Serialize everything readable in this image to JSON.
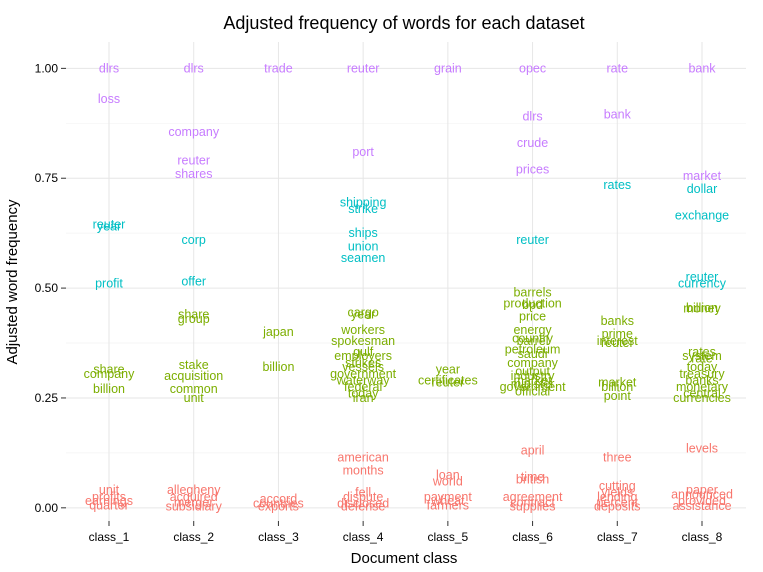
{
  "chart_data": {
    "type": "scatter",
    "title": "Adjusted frequency of words for each dataset",
    "xlabel": "Document class",
    "ylabel": "Adjusted word frequency",
    "categories": [
      "class_1",
      "class_2",
      "class_3",
      "class_4",
      "class_5",
      "class_6",
      "class_7",
      "class_8"
    ],
    "ylim": [
      -0.03,
      1.06
    ],
    "yticks": [
      0.0,
      0.25,
      0.5,
      0.75,
      1.0
    ],
    "ytick_labels": [
      "0.00",
      "0.25",
      "0.50",
      "0.75",
      "1.00"
    ],
    "grid": true,
    "legend": "none",
    "colors": {
      "high": "#C77CFF",
      "upper_mid": "#00BFC4",
      "mid": "#7CAE00",
      "low": "#F8766D"
    },
    "points": [
      {
        "c": 0,
        "y": 1.0,
        "w": "dlrs",
        "g": "high"
      },
      {
        "c": 0,
        "y": 0.93,
        "w": "loss",
        "g": "high"
      },
      {
        "c": 0,
        "y": 0.645,
        "w": "reuter",
        "g": "upper_mid"
      },
      {
        "c": 0,
        "y": 0.64,
        "w": "year",
        "g": "upper_mid"
      },
      {
        "c": 0,
        "y": 0.51,
        "w": "profit",
        "g": "upper_mid"
      },
      {
        "c": 0,
        "y": 0.315,
        "w": "share",
        "g": "mid"
      },
      {
        "c": 0,
        "y": 0.305,
        "w": "company",
        "g": "mid"
      },
      {
        "c": 0,
        "y": 0.27,
        "w": "billion",
        "g": "mid"
      },
      {
        "c": 0,
        "y": 0.04,
        "w": "unit",
        "g": "low"
      },
      {
        "c": 0,
        "y": 0.025,
        "w": "profits",
        "g": "low"
      },
      {
        "c": 0,
        "y": 0.015,
        "w": "earnings",
        "g": "low"
      },
      {
        "c": 0,
        "y": 0.005,
        "w": "quarter",
        "g": "low"
      },
      {
        "c": 1,
        "y": 1.0,
        "w": "dlrs",
        "g": "high"
      },
      {
        "c": 1,
        "y": 0.855,
        "w": "company",
        "g": "high"
      },
      {
        "c": 1,
        "y": 0.79,
        "w": "reuter",
        "g": "high"
      },
      {
        "c": 1,
        "y": 0.76,
        "w": "shares",
        "g": "high"
      },
      {
        "c": 1,
        "y": 0.61,
        "w": "corp",
        "g": "upper_mid"
      },
      {
        "c": 1,
        "y": 0.515,
        "w": "offer",
        "g": "upper_mid"
      },
      {
        "c": 1,
        "y": 0.44,
        "w": "share",
        "g": "mid"
      },
      {
        "c": 1,
        "y": 0.43,
        "w": "group",
        "g": "mid"
      },
      {
        "c": 1,
        "y": 0.325,
        "w": "stake",
        "g": "mid"
      },
      {
        "c": 1,
        "y": 0.3,
        "w": "acquisition",
        "g": "mid"
      },
      {
        "c": 1,
        "y": 0.27,
        "w": "common",
        "g": "mid"
      },
      {
        "c": 1,
        "y": 0.25,
        "w": "unit",
        "g": "mid"
      },
      {
        "c": 1,
        "y": 0.04,
        "w": "allegheny",
        "g": "low"
      },
      {
        "c": 1,
        "y": 0.025,
        "w": "acquired",
        "g": "low"
      },
      {
        "c": 1,
        "y": 0.012,
        "w": "merger",
        "g": "low"
      },
      {
        "c": 1,
        "y": 0.003,
        "w": "subsidiary",
        "g": "low"
      },
      {
        "c": 2,
        "y": 1.0,
        "w": "trade",
        "g": "high"
      },
      {
        "c": 2,
        "y": 0.4,
        "w": "japan",
        "g": "mid"
      },
      {
        "c": 2,
        "y": 0.32,
        "w": "billion",
        "g": "mid"
      },
      {
        "c": 2,
        "y": 0.02,
        "w": "accord",
        "g": "low"
      },
      {
        "c": 2,
        "y": 0.01,
        "w": "countries",
        "g": "low"
      },
      {
        "c": 2,
        "y": 0.003,
        "w": "exports",
        "g": "low"
      },
      {
        "c": 3,
        "y": 1.0,
        "w": "reuter",
        "g": "high"
      },
      {
        "c": 3,
        "y": 0.81,
        "w": "port",
        "g": "high"
      },
      {
        "c": 3,
        "y": 0.695,
        "w": "shipping",
        "g": "upper_mid"
      },
      {
        "c": 3,
        "y": 0.68,
        "w": "strike",
        "g": "upper_mid"
      },
      {
        "c": 3,
        "y": 0.625,
        "w": "ships",
        "g": "upper_mid"
      },
      {
        "c": 3,
        "y": 0.595,
        "w": "union",
        "g": "upper_mid"
      },
      {
        "c": 3,
        "y": 0.568,
        "w": "seamen",
        "g": "upper_mid"
      },
      {
        "c": 3,
        "y": 0.445,
        "w": "cargo",
        "g": "mid"
      },
      {
        "c": 3,
        "y": 0.44,
        "w": "year",
        "g": "mid"
      },
      {
        "c": 3,
        "y": 0.405,
        "w": "workers",
        "g": "mid"
      },
      {
        "c": 3,
        "y": 0.38,
        "w": "spokesman",
        "g": "mid"
      },
      {
        "c": 3,
        "y": 0.355,
        "w": "gulf",
        "g": "mid"
      },
      {
        "c": 3,
        "y": 0.345,
        "w": "employers",
        "g": "mid"
      },
      {
        "c": 3,
        "y": 0.33,
        "w": "strikes",
        "g": "mid"
      },
      {
        "c": 3,
        "y": 0.32,
        "w": "vessels",
        "g": "mid"
      },
      {
        "c": 3,
        "y": 0.305,
        "w": "government",
        "g": "mid"
      },
      {
        "c": 3,
        "y": 0.29,
        "w": "waterway",
        "g": "mid"
      },
      {
        "c": 3,
        "y": 0.275,
        "w": "federal",
        "g": "mid"
      },
      {
        "c": 3,
        "y": 0.26,
        "w": "today",
        "g": "mid"
      },
      {
        "c": 3,
        "y": 0.25,
        "w": "iran",
        "g": "mid"
      },
      {
        "c": 3,
        "y": 0.115,
        "w": "american",
        "g": "low"
      },
      {
        "c": 3,
        "y": 0.085,
        "w": "months",
        "g": "low"
      },
      {
        "c": 3,
        "y": 0.035,
        "w": "fell",
        "g": "low"
      },
      {
        "c": 3,
        "y": 0.025,
        "w": "dispute",
        "g": "low"
      },
      {
        "c": 3,
        "y": 0.01,
        "w": "disclosed",
        "g": "low"
      },
      {
        "c": 3,
        "y": 0.003,
        "w": "defense",
        "g": "low"
      },
      {
        "c": 4,
        "y": 1.0,
        "w": "grain",
        "g": "high"
      },
      {
        "c": 4,
        "y": 0.315,
        "w": "year",
        "g": "mid"
      },
      {
        "c": 4,
        "y": 0.29,
        "w": "certificates",
        "g": "mid"
      },
      {
        "c": 4,
        "y": 0.285,
        "w": "reuter",
        "g": "mid"
      },
      {
        "c": 4,
        "y": 0.075,
        "w": "loan",
        "g": "low"
      },
      {
        "c": 4,
        "y": 0.06,
        "w": "world",
        "g": "low"
      },
      {
        "c": 4,
        "y": 0.025,
        "w": "payment",
        "g": "low"
      },
      {
        "c": 4,
        "y": 0.015,
        "w": "wheat",
        "g": "low"
      },
      {
        "c": 4,
        "y": 0.005,
        "w": "farmers",
        "g": "low"
      },
      {
        "c": 5,
        "y": 1.0,
        "w": "opec",
        "g": "high"
      },
      {
        "c": 5,
        "y": 0.89,
        "w": "dlrs",
        "g": "high"
      },
      {
        "c": 5,
        "y": 0.83,
        "w": "crude",
        "g": "high"
      },
      {
        "c": 5,
        "y": 0.77,
        "w": "prices",
        "g": "high"
      },
      {
        "c": 5,
        "y": 0.61,
        "w": "reuter",
        "g": "upper_mid"
      },
      {
        "c": 5,
        "y": 0.49,
        "w": "barrels",
        "g": "mid"
      },
      {
        "c": 5,
        "y": 0.465,
        "w": "production",
        "g": "mid"
      },
      {
        "c": 5,
        "y": 0.462,
        "w": "bpd",
        "g": "mid"
      },
      {
        "c": 5,
        "y": 0.435,
        "w": "price",
        "g": "mid"
      },
      {
        "c": 5,
        "y": 0.405,
        "w": "energy",
        "g": "mid"
      },
      {
        "c": 5,
        "y": 0.385,
        "w": "country",
        "g": "mid"
      },
      {
        "c": 5,
        "y": 0.38,
        "w": "barrel",
        "g": "mid"
      },
      {
        "c": 5,
        "y": 0.36,
        "w": "petroleum",
        "g": "mid"
      },
      {
        "c": 5,
        "y": 0.35,
        "w": "saudi",
        "g": "mid"
      },
      {
        "c": 5,
        "y": 0.33,
        "w": "company",
        "g": "mid"
      },
      {
        "c": 5,
        "y": 0.31,
        "w": "output",
        "g": "mid"
      },
      {
        "c": 5,
        "y": 0.3,
        "w": "industry",
        "g": "mid"
      },
      {
        "c": 5,
        "y": 0.29,
        "w": "market",
        "g": "mid"
      },
      {
        "c": 5,
        "y": 0.282,
        "w": "minister",
        "g": "mid"
      },
      {
        "c": 5,
        "y": 0.275,
        "w": "government",
        "g": "mid"
      },
      {
        "c": 5,
        "y": 0.265,
        "w": "official",
        "g": "mid"
      },
      {
        "c": 5,
        "y": 0.13,
        "w": "april",
        "g": "low"
      },
      {
        "c": 5,
        "y": 0.07,
        "w": "time",
        "g": "low"
      },
      {
        "c": 5,
        "y": 0.065,
        "w": "british",
        "g": "low"
      },
      {
        "c": 5,
        "y": 0.025,
        "w": "agreement",
        "g": "low"
      },
      {
        "c": 5,
        "y": 0.012,
        "w": "contract",
        "g": "low"
      },
      {
        "c": 5,
        "y": 0.003,
        "w": "supplies",
        "g": "low"
      },
      {
        "c": 6,
        "y": 1.0,
        "w": "rate",
        "g": "high"
      },
      {
        "c": 6,
        "y": 0.895,
        "w": "bank",
        "g": "high"
      },
      {
        "c": 6,
        "y": 0.735,
        "w": "rates",
        "g": "upper_mid"
      },
      {
        "c": 6,
        "y": 0.425,
        "w": "banks",
        "g": "mid"
      },
      {
        "c": 6,
        "y": 0.395,
        "w": "prime",
        "g": "mid"
      },
      {
        "c": 6,
        "y": 0.38,
        "w": "interest",
        "g": "mid"
      },
      {
        "c": 6,
        "y": 0.375,
        "w": "reuter",
        "g": "mid"
      },
      {
        "c": 6,
        "y": 0.285,
        "w": "market",
        "g": "mid"
      },
      {
        "c": 6,
        "y": 0.275,
        "w": "billion",
        "g": "mid"
      },
      {
        "c": 6,
        "y": 0.255,
        "w": "point",
        "g": "mid"
      },
      {
        "c": 6,
        "y": 0.115,
        "w": "three",
        "g": "low"
      },
      {
        "c": 6,
        "y": 0.05,
        "w": "cutting",
        "g": "low"
      },
      {
        "c": 6,
        "y": 0.035,
        "w": "yields",
        "g": "low"
      },
      {
        "c": 6,
        "y": 0.025,
        "w": "lending",
        "g": "low"
      },
      {
        "c": 6,
        "y": 0.012,
        "w": "percent",
        "g": "low"
      },
      {
        "c": 6,
        "y": 0.003,
        "w": "deposits",
        "g": "low"
      },
      {
        "c": 7,
        "y": 1.0,
        "w": "bank",
        "g": "high"
      },
      {
        "c": 7,
        "y": 0.755,
        "w": "market",
        "g": "high"
      },
      {
        "c": 7,
        "y": 0.725,
        "w": "dollar",
        "g": "upper_mid"
      },
      {
        "c": 7,
        "y": 0.665,
        "w": "exchange",
        "g": "upper_mid"
      },
      {
        "c": 7,
        "y": 0.525,
        "w": "reuter",
        "g": "upper_mid"
      },
      {
        "c": 7,
        "y": 0.51,
        "w": "currency",
        "g": "upper_mid"
      },
      {
        "c": 7,
        "y": 0.455,
        "w": "billion",
        "g": "mid"
      },
      {
        "c": 7,
        "y": 0.453,
        "w": "money",
        "g": "mid"
      },
      {
        "c": 7,
        "y": 0.355,
        "w": "rates",
        "g": "mid"
      },
      {
        "c": 7,
        "y": 0.345,
        "w": "system",
        "g": "mid"
      },
      {
        "c": 7,
        "y": 0.34,
        "w": "rate",
        "g": "mid"
      },
      {
        "c": 7,
        "y": 0.32,
        "w": "today",
        "g": "mid"
      },
      {
        "c": 7,
        "y": 0.305,
        "w": "treasury",
        "g": "mid"
      },
      {
        "c": 7,
        "y": 0.29,
        "w": "banks",
        "g": "mid"
      },
      {
        "c": 7,
        "y": 0.275,
        "w": "monetary",
        "g": "mid"
      },
      {
        "c": 7,
        "y": 0.26,
        "w": "central",
        "g": "mid"
      },
      {
        "c": 7,
        "y": 0.25,
        "w": "currencies",
        "g": "mid"
      },
      {
        "c": 7,
        "y": 0.135,
        "w": "levels",
        "g": "low"
      },
      {
        "c": 7,
        "y": 0.04,
        "w": "paper",
        "g": "low"
      },
      {
        "c": 7,
        "y": 0.03,
        "w": "announced",
        "g": "low"
      },
      {
        "c": 7,
        "y": 0.015,
        "w": "provided",
        "g": "low"
      },
      {
        "c": 7,
        "y": 0.004,
        "w": "assistance",
        "g": "low"
      }
    ]
  }
}
